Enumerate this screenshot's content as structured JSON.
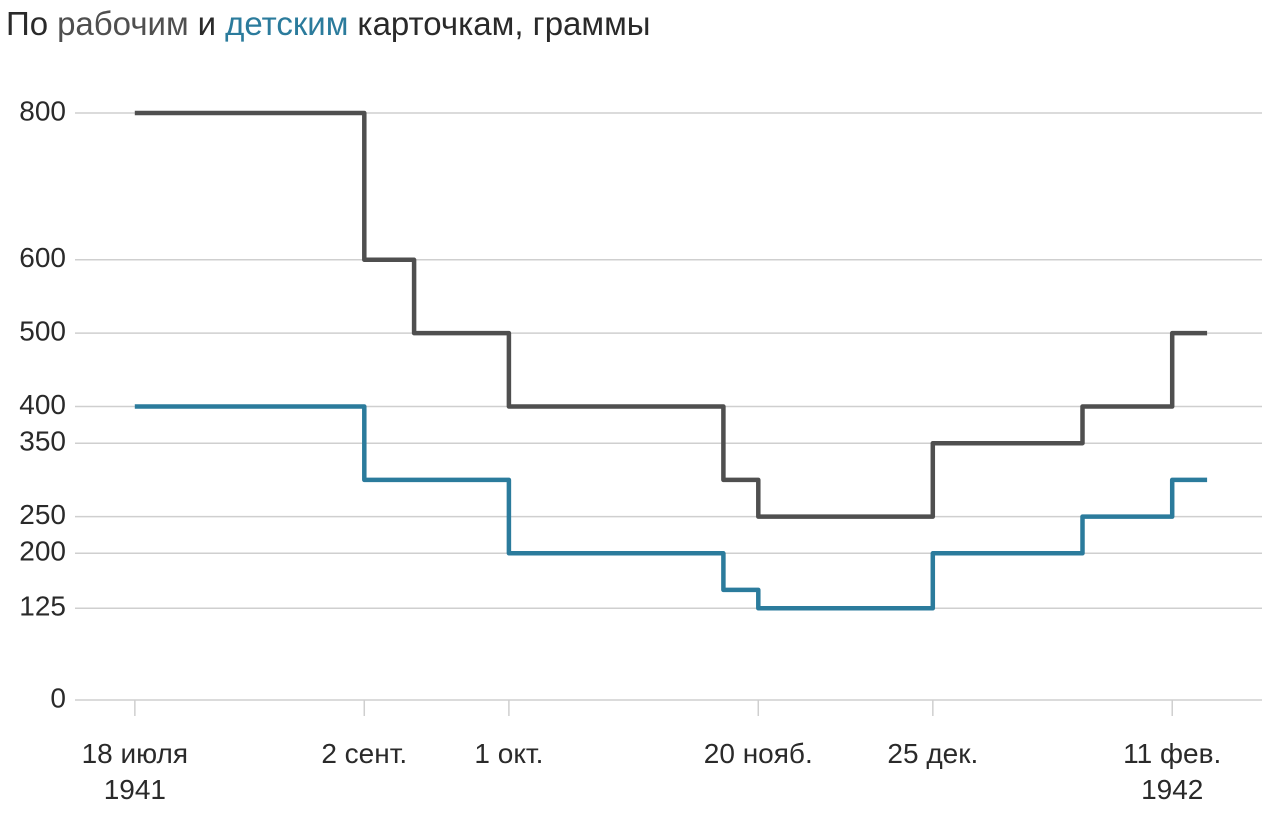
{
  "chart_data": {
    "type": "line",
    "step": true,
    "title_prefix": "По",
    "title_middle": "и",
    "title_suffix": "карточкам, граммы",
    "x": [
      "1941-07-18",
      "1941-09-02",
      "1941-09-02",
      "1941-09-12",
      "1941-09-12",
      "1941-10-01",
      "1941-10-01",
      "1941-11-13",
      "1941-11-13",
      "1941-11-20",
      "1941-11-20",
      "1941-12-25",
      "1941-12-25",
      "1942-01-24",
      "1942-01-24",
      "1942-02-11",
      "1942-02-11",
      "1942-02-18"
    ],
    "series": [
      {
        "name": "рабочим",
        "color": "#4f4f4f",
        "values": [
          800,
          800,
          600,
          600,
          500,
          500,
          400,
          400,
          300,
          300,
          250,
          250,
          350,
          350,
          400,
          400,
          500,
          500
        ]
      },
      {
        "name": "детским",
        "color": "#2b7b9c",
        "values": [
          400,
          400,
          300,
          300,
          300,
          300,
          200,
          200,
          150,
          150,
          125,
          125,
          200,
          200,
          250,
          250,
          300,
          300
        ]
      }
    ],
    "xlim": [
      "1941-07-06",
      "1942-03-01"
    ],
    "xticks": [
      {
        "value": "1941-07-18",
        "label": "18 июля\n1941"
      },
      {
        "value": "1941-09-02",
        "label": "2 сент."
      },
      {
        "value": "1941-10-01",
        "label": "1 окт."
      },
      {
        "value": "1941-11-20",
        "label": "20 нояб."
      },
      {
        "value": "1941-12-25",
        "label": "25 дек."
      },
      {
        "value": "1942-02-11",
        "label": "11 фев.\n1942"
      }
    ],
    "ylim": [
      0,
      800
    ],
    "yticks": [
      0,
      125,
      200,
      250,
      350,
      400,
      500,
      600,
      800
    ],
    "grid": true
  }
}
